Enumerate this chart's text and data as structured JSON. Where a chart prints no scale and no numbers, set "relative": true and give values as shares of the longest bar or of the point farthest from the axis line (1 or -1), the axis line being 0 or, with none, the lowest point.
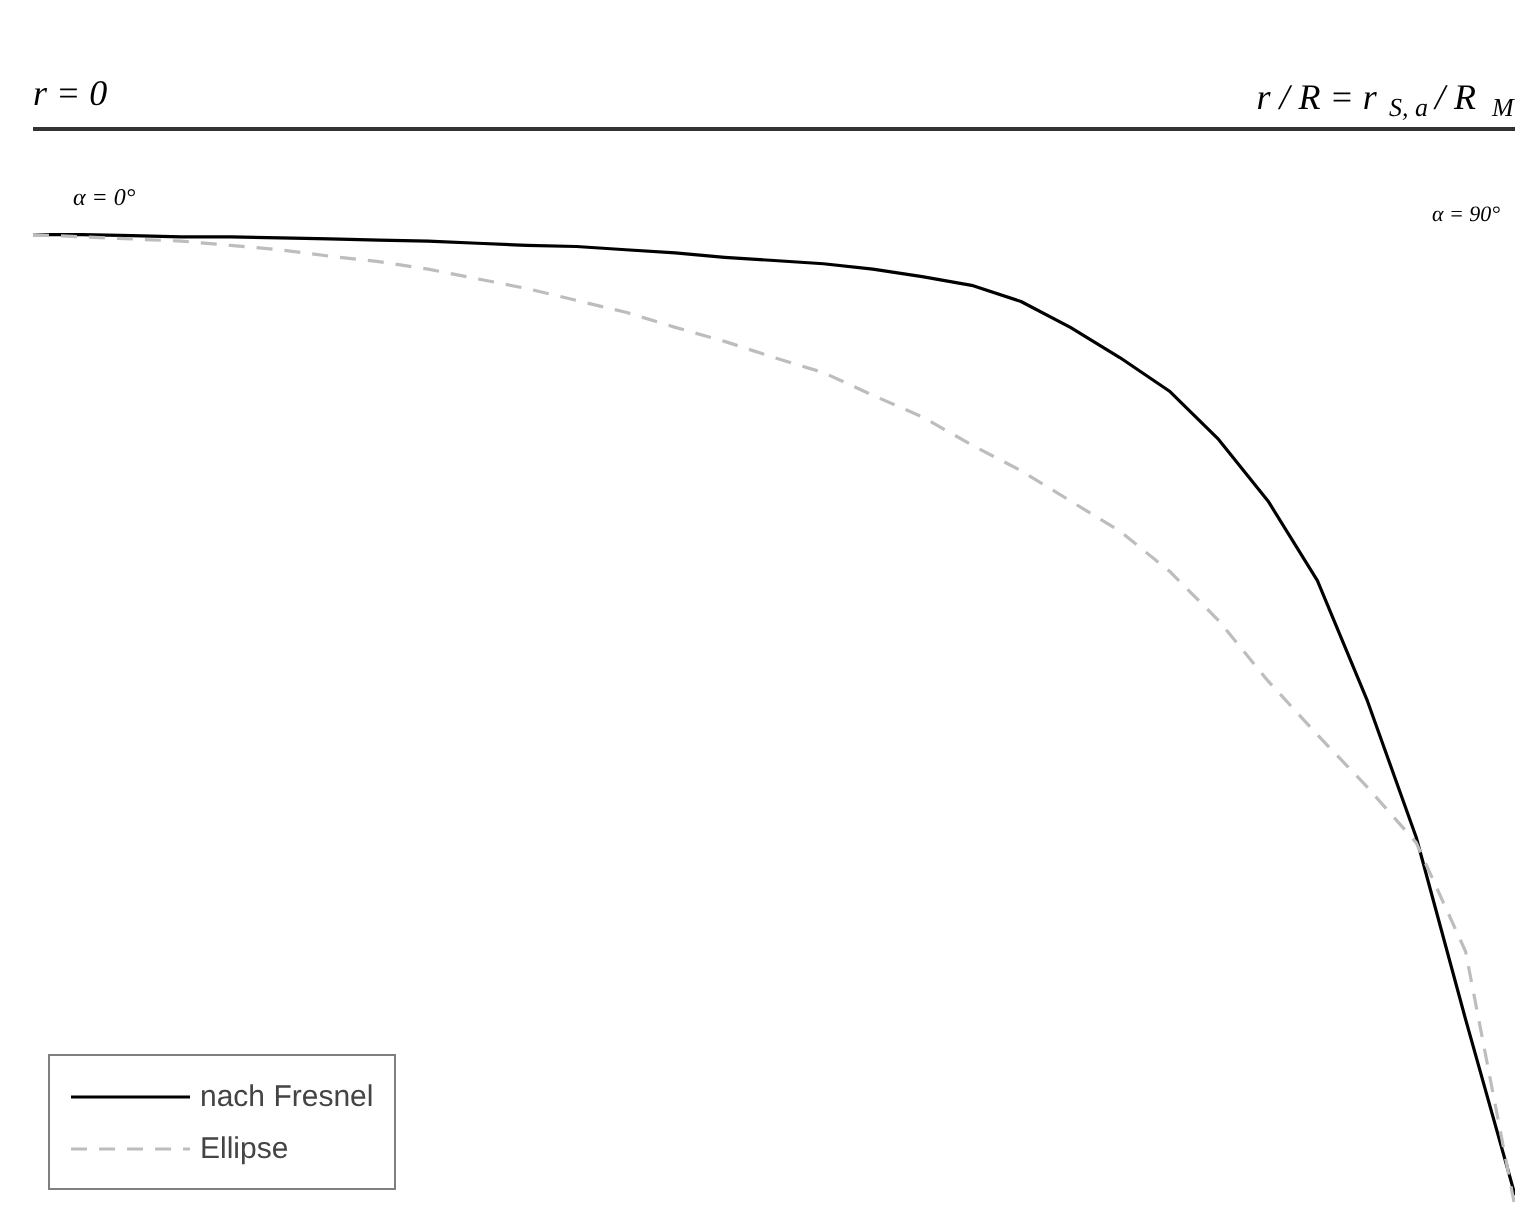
{
  "chart_data": {
    "type": "line",
    "relative": true,
    "categories": [
      null,
      null,
      null,
      null,
      null,
      null,
      null,
      null,
      null,
      null,
      null,
      null,
      null,
      null,
      null,
      null,
      null,
      null,
      null,
      null,
      null,
      null,
      null,
      null,
      null,
      null,
      null,
      null,
      null,
      null,
      null
    ],
    "series": [
      {
        "name": "nach Fresnel",
        "color": "#000000",
        "line_style": "solid",
        "values": [
          -0.098,
          -0.098,
          -0.099,
          -0.1,
          -0.1,
          -0.101,
          -0.102,
          -0.103,
          -0.104,
          -0.106,
          -0.108,
          -0.109,
          -0.112,
          -0.115,
          -0.119,
          -0.122,
          -0.125,
          -0.13,
          -0.137,
          -0.145,
          -0.16,
          -0.184,
          -0.212,
          -0.243,
          -0.288,
          -0.345,
          -0.419,
          -0.529,
          -0.657,
          -0.826,
          -0.989
        ]
      },
      {
        "name": "Ellipse",
        "color": "#bdbdbd",
        "line_style": "dashed",
        "values": [
          -0.098,
          -0.1,
          -0.102,
          -0.104,
          -0.108,
          -0.112,
          -0.118,
          -0.123,
          -0.13,
          -0.139,
          -0.148,
          -0.159,
          -0.17,
          -0.184,
          -0.197,
          -0.212,
          -0.226,
          -0.247,
          -0.267,
          -0.293,
          -0.317,
          -0.345,
          -0.373,
          -0.41,
          -0.456,
          -0.512,
          -0.562,
          -0.61,
          -0.662,
          -0.763,
          -1
        ]
      }
    ],
    "annotations": [
      "r = 0",
      "r / R = r$_{S, a}$ / R$_{M}$",
      "α = 0°",
      "α = 90°"
    ],
    "legend": "bottom left",
    "grid": false,
    "marker": "none"
  }
}
